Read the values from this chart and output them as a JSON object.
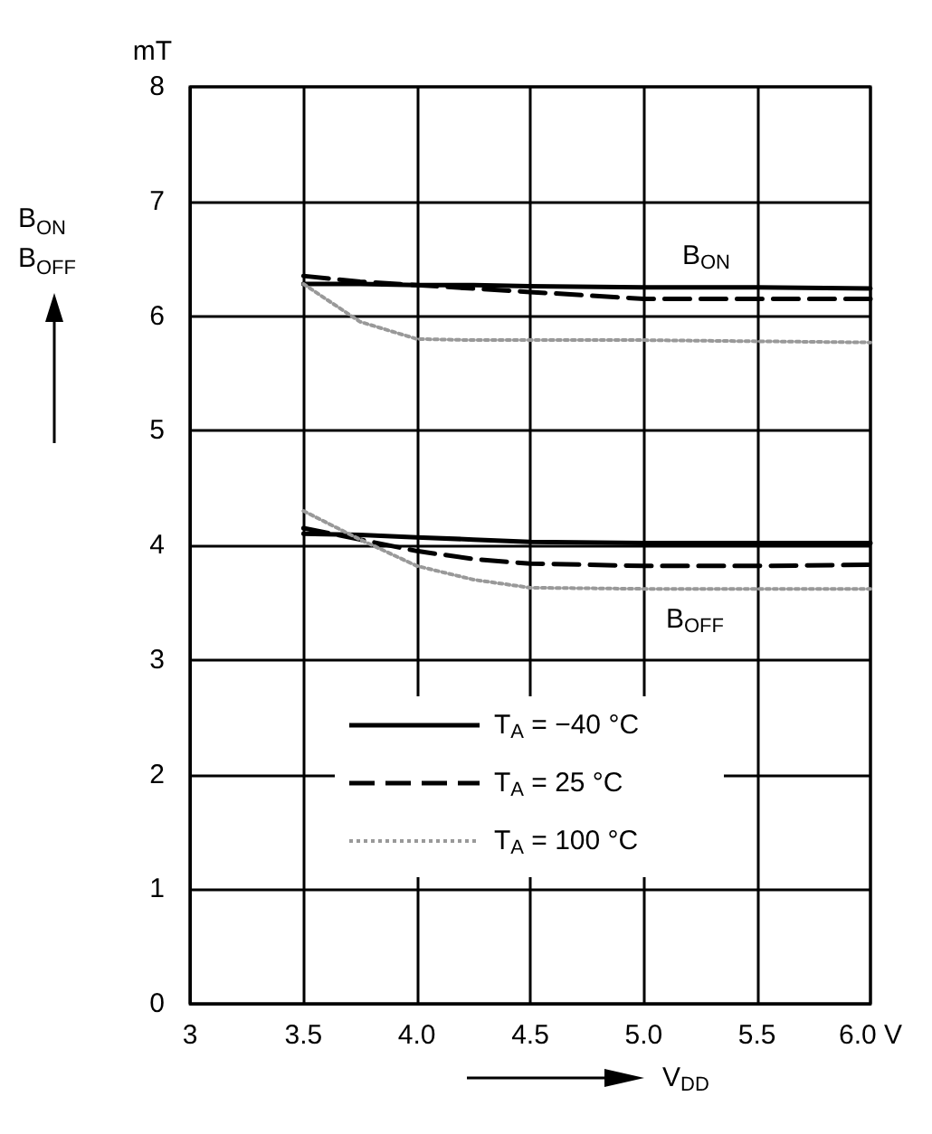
{
  "chart_data": {
    "type": "line",
    "xlabel": "V$_{DD}$",
    "ylabel": "B$_{ON}$\nB$_{OFF}$",
    "x": [
      3.5,
      3.75,
      4,
      4.25,
      4.5,
      5,
      5.5,
      6
    ],
    "series": [
      {
        "name": "T$_{A}$ = −40 °C",
        "color": "#000000",
        "line_style": "solid",
        "values": [
          6.28,
          6.28,
          6.27,
          6.27,
          6.26,
          6.25,
          6.25,
          6.24
        ]
      },
      {
        "name": "T$_{A}$ = 25 °C",
        "color": "#000000",
        "line_style": "dashed",
        "values": [
          6.35,
          6.3,
          6.27,
          6.24,
          6.21,
          6.15,
          6.15,
          6.15
        ]
      },
      {
        "name": "T$_{A}$ = 100 °C",
        "color": "#999999",
        "line_style": "dotted",
        "values": [
          6.28,
          5.95,
          5.8,
          5.79,
          5.79,
          5.79,
          5.78,
          5.77
        ]
      },
      {
        "color": "#000000",
        "line_style": "solid",
        "values": [
          4.1,
          4.09,
          4.07,
          4.05,
          4.03,
          4.02,
          4.02,
          4.02
        ]
      },
      {
        "color": "#000000",
        "line_style": "dashed",
        "values": [
          4.15,
          4.05,
          3.95,
          3.88,
          3.84,
          3.82,
          3.82,
          3.83
        ]
      },
      {
        "color": "#999999",
        "line_style": "dotted",
        "values": [
          4.3,
          4.05,
          3.82,
          3.7,
          3.63,
          3.62,
          3.62,
          3.62
        ]
      }
    ],
    "xlim": [
      3,
      6
    ],
    "ylim": [
      0,
      8
    ],
    "xticks": [
      3,
      3.5,
      {
        "value": 4,
        "label": "4.0"
      },
      4.5,
      {
        "value": 5,
        "label": "5.0"
      },
      5.5,
      {
        "value": 6,
        "label": "6.0 V"
      }
    ],
    "yticks": [
      0,
      1,
      2,
      3,
      4,
      5,
      6,
      7,
      8
    ],
    "annotations": [
      "mT",
      "B$_{ON}$",
      "B$_{OFF}$"
    ],
    "grid": true,
    "legend": "bottom",
    "marker": "none"
  }
}
